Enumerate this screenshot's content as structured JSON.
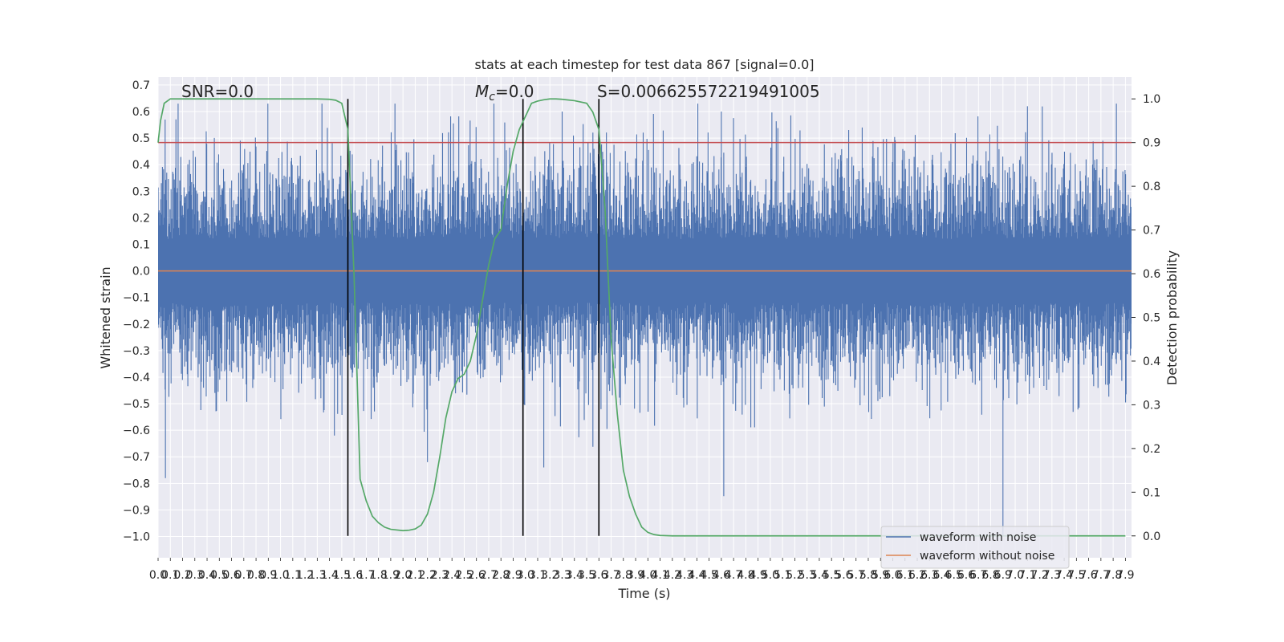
{
  "chart_data": {
    "type": "line",
    "title": "stats at each timestep for test data 867 [signal=0.0]",
    "xlabel": "Time (s)",
    "ylabel_left": "Whitened strain",
    "ylabel_right": "Detection probability",
    "xlim": [
      0.0,
      7.95
    ],
    "ylim_left": [
      -1.08,
      0.73
    ],
    "ylim_right": [
      -0.05,
      1.05
    ],
    "x_ticks": [
      "0.0",
      "0.1",
      "0.2",
      "0.3",
      "0.4",
      "0.5",
      "0.6",
      "0.7",
      "0.8",
      "0.9",
      "1.0",
      "1.1",
      "1.2",
      "1.3",
      "1.4",
      "1.5",
      "1.6",
      "1.7",
      "1.8",
      "1.9",
      "2.0",
      "2.1",
      "2.2",
      "2.3",
      "2.4",
      "2.5",
      "2.6",
      "2.7",
      "2.8",
      "2.9",
      "3.0",
      "3.1",
      "3.2",
      "3.3",
      "3.4",
      "3.5",
      "3.6",
      "3.7",
      "3.8",
      "3.9",
      "4.0",
      "4.1",
      "4.2",
      "4.3",
      "4.4",
      "4.5",
      "4.6",
      "4.7",
      "4.8",
      "4.9",
      "5.0",
      "5.1",
      "5.2",
      "5.3",
      "5.4",
      "5.5",
      "5.6",
      "5.7",
      "5.8",
      "5.9",
      "6.0",
      "6.1",
      "6.2",
      "6.3",
      "6.4",
      "6.5",
      "6.6",
      "6.7",
      "6.8",
      "6.9",
      "7.0",
      "7.1",
      "7.2",
      "7.3",
      "7.4",
      "7.5",
      "7.6",
      "7.7",
      "7.8",
      "7.9"
    ],
    "y_ticks_left": [
      "0.7",
      "0.6",
      "0.5",
      "0.4",
      "0.3",
      "0.2",
      "0.1",
      "0.0",
      "−0.1",
      "−0.2",
      "−0.3",
      "−0.4",
      "−0.5",
      "−0.6",
      "−0.7",
      "−0.8",
      "−0.9",
      "−1.0"
    ],
    "y_ticks_right": [
      "1.0",
      "0.9",
      "0.8",
      "0.7",
      "0.6",
      "0.5",
      "0.4",
      "0.3",
      "0.2",
      "0.1",
      "0.0"
    ],
    "annotations": {
      "snr": "SNR=0.0",
      "mc_prefix": "M",
      "mc_sub": "c",
      "mc_value": "=0.0",
      "s": "S=0.006625572219491005"
    },
    "threshold": 0.9,
    "vertical_lines_x": [
      1.55,
      2.98,
      3.6
    ],
    "series": [
      {
        "name": "waveform with noise",
        "color": "#4c72b0",
        "envelope": [
          -0.35,
          0.35
        ],
        "max": 0.63,
        "min": -1.0
      },
      {
        "name": "waveform without noise",
        "color": "#dd8452",
        "values": [
          0.0
        ]
      },
      {
        "name": "detection probability",
        "color": "#55a868",
        "axis": "right",
        "x": [
          0.0,
          0.02,
          0.05,
          0.1,
          0.15,
          0.2,
          0.3,
          0.5,
          0.8,
          1.0,
          1.2,
          1.3,
          1.4,
          1.45,
          1.5,
          1.55,
          1.6,
          1.65,
          1.7,
          1.75,
          1.8,
          1.85,
          1.9,
          2.0,
          2.05,
          2.1,
          2.15,
          2.2,
          2.25,
          2.3,
          2.35,
          2.4,
          2.45,
          2.5,
          2.55,
          2.6,
          2.65,
          2.7,
          2.75,
          2.8,
          2.85,
          2.9,
          2.95,
          3.0,
          3.05,
          3.1,
          3.15,
          3.2,
          3.25,
          3.3,
          3.4,
          3.5,
          3.55,
          3.6,
          3.65,
          3.7,
          3.75,
          3.8,
          3.85,
          3.9,
          3.95,
          4.0,
          4.05,
          4.1,
          4.2,
          4.4,
          5.0,
          6.0,
          7.0,
          7.9
        ],
        "values": [
          0.9,
          0.95,
          0.99,
          1.0,
          1.0,
          1.0,
          1.0,
          1.0,
          1.0,
          1.0,
          1.0,
          1.0,
          0.999,
          0.997,
          0.99,
          0.93,
          0.6,
          0.13,
          0.08,
          0.045,
          0.03,
          0.02,
          0.015,
          0.012,
          0.013,
          0.016,
          0.025,
          0.05,
          0.1,
          0.18,
          0.27,
          0.33,
          0.36,
          0.37,
          0.4,
          0.46,
          0.54,
          0.62,
          0.68,
          0.7,
          0.8,
          0.88,
          0.93,
          0.96,
          0.99,
          0.995,
          0.998,
          1.0,
          1.0,
          0.999,
          0.996,
          0.99,
          0.97,
          0.93,
          0.75,
          0.45,
          0.28,
          0.15,
          0.09,
          0.05,
          0.02,
          0.008,
          0.003,
          0.001,
          0.0,
          0.0,
          0.0,
          0.0,
          0.0,
          0.0
        ]
      }
    ],
    "legend": [
      "waveform with noise",
      "waveform without noise"
    ],
    "legend_loc": "lower-right",
    "grid": true,
    "colors": {
      "background": "#eaeaf2",
      "grid": "#ffffff",
      "threshold": "#c44e52",
      "vline": "#000000"
    }
  }
}
